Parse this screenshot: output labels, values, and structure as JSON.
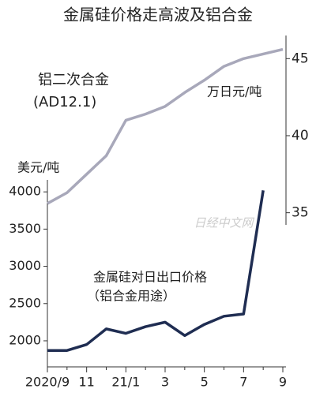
{
  "chart_data": {
    "type": "line",
    "title": "金属硅价格走高波及铝合金",
    "categories": [
      "2020/9",
      null,
      "11",
      null,
      "21/1",
      null,
      "3",
      null,
      "5",
      null,
      "7",
      null,
      "9"
    ],
    "ylim": [
      1650,
      6100
    ],
    "yticks": [
      2000,
      2500,
      3000,
      3500,
      4000
    ],
    "y2lim": [
      25,
      46.5
    ],
    "y2ticks": [
      35,
      40,
      45
    ],
    "y_label": "美元/吨",
    "y2_label": "万日元/吨",
    "series": [
      {
        "name": "铝二次合金",
        "subname": "(AD12.1)",
        "color": "#a8a8ba",
        "axis": "y2",
        "values": [
          35.6,
          36.3,
          37.5,
          38.7,
          41.0,
          41.4,
          41.9,
          42.8,
          43.6,
          44.5,
          45.0,
          45.3,
          45.6
        ]
      },
      {
        "name": "金属硅对日出口价格",
        "subname": "（铝合金用途）",
        "color": "#1f2d52",
        "axis": "y",
        "values": [
          1870,
          1870,
          1950,
          2160,
          2100,
          2190,
          2250,
          2070,
          2220,
          2330,
          2360,
          4020,
          null
        ]
      }
    ],
    "watermark": "日经中文网"
  }
}
